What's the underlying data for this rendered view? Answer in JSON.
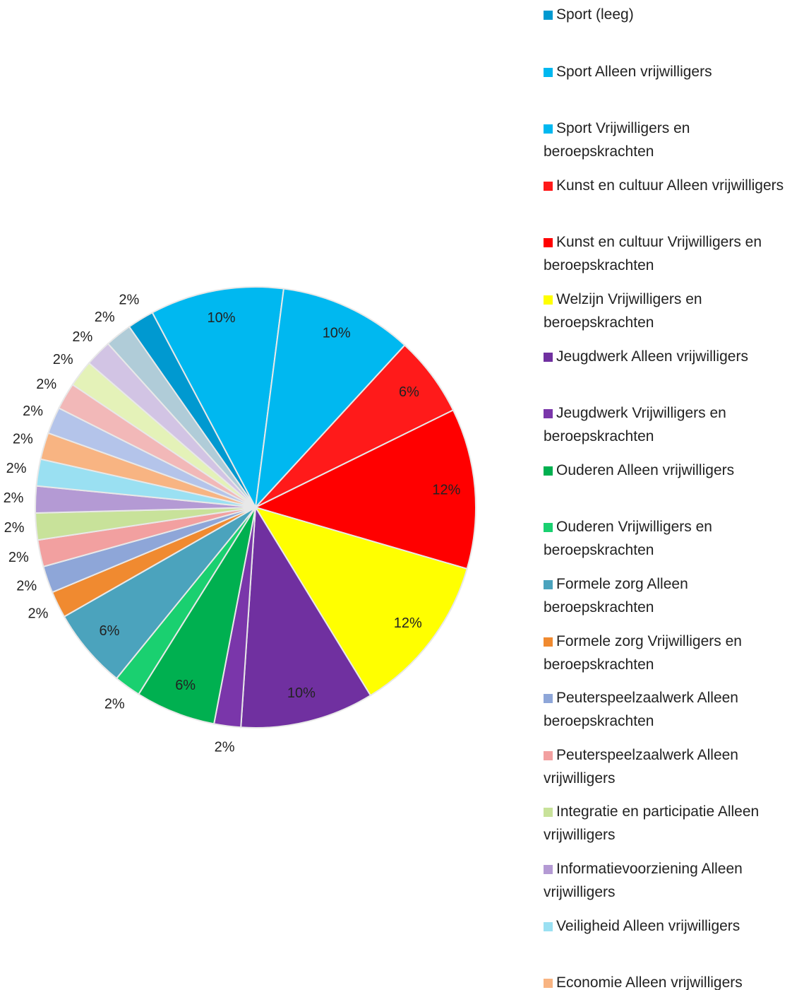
{
  "chart_data": {
    "type": "pie",
    "categories": [
      "Sport (leeg)",
      "Sport Alleen vrijwilligers",
      "Sport Vrijwilligers en beroepskrachten",
      "Kunst en cultuur Alleen vrijwilligers",
      "Kunst en cultuur Vrijwilligers en beroepskrachten",
      "Welzijn Vrijwilligers en beroepskrachten",
      "Jeugdwerk Alleen vrijwilligers",
      "Jeugdwerk Vrijwilligers en beroepskrachten",
      "Ouderen Alleen vrijwilligers",
      "Ouderen Vrijwilligers en beroepskrachten",
      "Formele zorg Alleen beroepskrachten",
      "Formele zorg Vrijwilligers en beroepskrachten",
      "Peuterspeelzaalwerk Alleen beroepskrachten",
      "Peuterspeelzaalwerk Alleen vrijwilligers",
      "Integratie en participatie Alleen vrijwilligers",
      "Informatievoorziening Alleen vrijwilligers",
      "Veiligheid Alleen vrijwilligers",
      "Economie Alleen vrijwilligers",
      null,
      null,
      null,
      null,
      null
    ],
    "values": [
      2,
      10,
      10,
      6,
      12,
      12,
      10,
      2,
      6,
      2,
      6,
      2,
      2,
      2,
      2,
      2,
      2,
      2,
      2,
      2,
      2,
      2,
      2
    ],
    "value_labels": [
      "2%",
      "10%",
      "10%",
      "6%",
      "12%",
      "12%",
      "10%",
      "2%",
      "6%",
      "2%",
      "6%",
      "2%",
      "2%",
      "2%",
      "2%",
      "2%",
      "2%",
      "2%",
      "2%",
      "2%",
      "2%",
      "2%",
      "2%"
    ],
    "colors": [
      "#0099d0",
      "#00b8f0",
      "#00b8f0",
      "#ff1a1a",
      "#ff0000",
      "#ffff00",
      "#7030a0",
      "#7a36aa",
      "#00b050",
      "#1ad070",
      "#4ba3bd",
      "#f08a30",
      "#8ea6d8",
      "#f2a0a0",
      "#c8e29a",
      "#b49ad4",
      "#9ae0f2",
      "#f8b482",
      "#b4c4ea",
      "#f2b8b8",
      "#e4f2b8",
      "#d2c4e4",
      "#b0ccd8"
    ]
  }
}
